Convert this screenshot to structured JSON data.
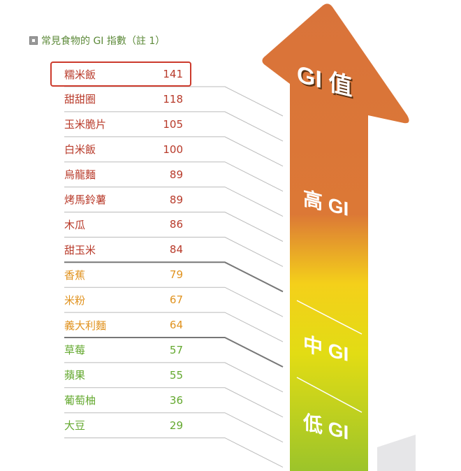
{
  "title": "常見食物的 GI 指數（註 1）",
  "arrow": {
    "top_label": "GI 值",
    "high": "高 GI",
    "medium": "中 GI",
    "low": "低 GI",
    "colors": {
      "high": "#d9733a",
      "medium": "#f2d21a",
      "low": "#9cc42a"
    }
  },
  "colors": {
    "high": "#b83a2a",
    "medium": "#e0921e",
    "low": "#63a82e",
    "highlight": "#cc3a2c"
  },
  "foods": [
    {
      "name": "糯米飯",
      "gi": "141",
      "level": "hi"
    },
    {
      "name": "甜甜圈",
      "gi": "118",
      "level": "hi"
    },
    {
      "name": "玉米脆片",
      "gi": "105",
      "level": "hi"
    },
    {
      "name": "白米飯",
      "gi": "100",
      "level": "hi"
    },
    {
      "name": "烏龍麵",
      "gi": "89",
      "level": "hi"
    },
    {
      "name": "烤馬鈴薯",
      "gi": "89",
      "level": "hi"
    },
    {
      "name": "木瓜",
      "gi": "86",
      "level": "hi"
    },
    {
      "name": "甜玉米",
      "gi": "84",
      "level": "hi"
    },
    {
      "name": "香蕉",
      "gi": "79",
      "level": "mid"
    },
    {
      "name": "米粉",
      "gi": "67",
      "level": "mid"
    },
    {
      "name": "義大利麵",
      "gi": "64",
      "level": "mid"
    },
    {
      "name": "草莓",
      "gi": "57",
      "level": "lo"
    },
    {
      "name": "蘋果",
      "gi": "55",
      "level": "lo"
    },
    {
      "name": "葡萄柚",
      "gi": "36",
      "level": "lo"
    },
    {
      "name": "大豆",
      "gi": "29",
      "level": "lo"
    }
  ]
}
